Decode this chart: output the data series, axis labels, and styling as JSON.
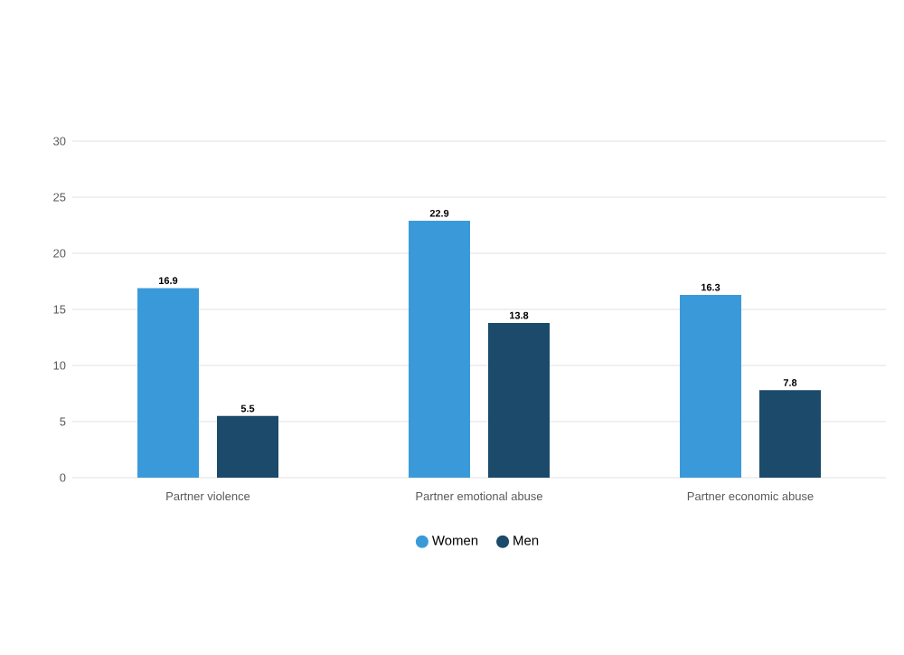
{
  "chart_data": {
    "type": "bar",
    "categories": [
      "Partner violence",
      "Partner emotional abuse",
      "Partner economic abuse"
    ],
    "series": [
      {
        "name": "Women",
        "color": "#3a9ad9",
        "values": [
          16.9,
          22.9,
          16.3
        ]
      },
      {
        "name": "Men",
        "color": "#1b4a6b",
        "values": [
          5.5,
          13.8,
          7.8
        ]
      }
    ],
    "ylim": [
      0,
      30
    ],
    "yticks": [
      0,
      5,
      10,
      15,
      20,
      25,
      30
    ],
    "grid": "y",
    "legend": "bottom",
    "data_labels": true
  }
}
